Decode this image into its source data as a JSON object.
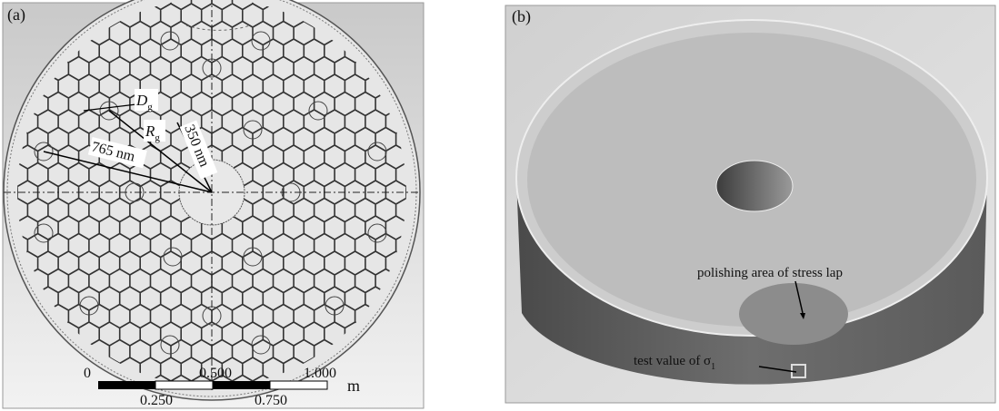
{
  "panel_a": {
    "label": "(a)",
    "dg": {
      "main": "D",
      "sub": "g"
    },
    "rg": {
      "main": "R",
      "sub": "g"
    },
    "radius_inner": "350 nm",
    "radius_outer": "765 nm",
    "scale_bar": {
      "top_labels": [
        "0",
        "0.500",
        "1.000"
      ],
      "bottom_labels": [
        "0.250",
        "0.750"
      ],
      "unit": "m"
    }
  },
  "panel_b": {
    "label": "(b)",
    "annotation_polishing": "polishing area of stress lap",
    "annotation_test": {
      "main": "test value of σ",
      "sub": "1"
    }
  }
}
